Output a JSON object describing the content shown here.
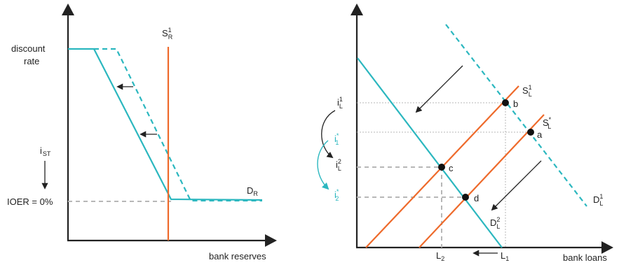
{
  "colors": {
    "demand": "#2bb7bf",
    "supply": "#ee6a2b",
    "axis": "#222222",
    "guide": "#b7b7b7",
    "highlight_rate": "#2bb7bf"
  },
  "left_panel": {
    "x_axis_label": "bank reserves",
    "y_label_discount_line1": "discount",
    "y_label_discount_line2": "rate",
    "y_label_ist_main": "i",
    "y_label_ist_sub": "ST",
    "y_label_ioer": "IOER = 0%",
    "supply_label_main": "S",
    "supply_label_sub": "R",
    "supply_label_sup": "1",
    "demand_label_main": "D",
    "demand_label_sub": "R"
  },
  "right_panel": {
    "x_axis_label": "bank loans",
    "x_tick_L2_main": "L",
    "x_tick_L2_sub": "2",
    "x_tick_L1_main": "L",
    "x_tick_L1_sub": "1",
    "rate_iL1_main": "i",
    "rate_iL1_sub": "L",
    "rate_iL1_sup": "1",
    "rate_istar1_main": "i",
    "rate_istar1_sub": "1",
    "rate_istar1_sup": "*",
    "rate_iL2_main": "i",
    "rate_iL2_sub": "L",
    "rate_iL2_sup": "2",
    "rate_istar2_main": "i",
    "rate_istar2_sub": "2",
    "rate_istar2_sup": "*",
    "supply1_main": "S",
    "supply1_sub": "L",
    "supply1_sup": "1",
    "supply_star_main": "S",
    "supply_star_sub": "L",
    "supply_star_sup": "*",
    "demand1_main": "D",
    "demand1_sub": "L",
    "demand1_sup": "1",
    "demand2_main": "D",
    "demand2_sub": "L",
    "demand2_sup": "2",
    "point_a": "a",
    "point_b": "b",
    "point_c": "c",
    "point_d": "d"
  }
}
